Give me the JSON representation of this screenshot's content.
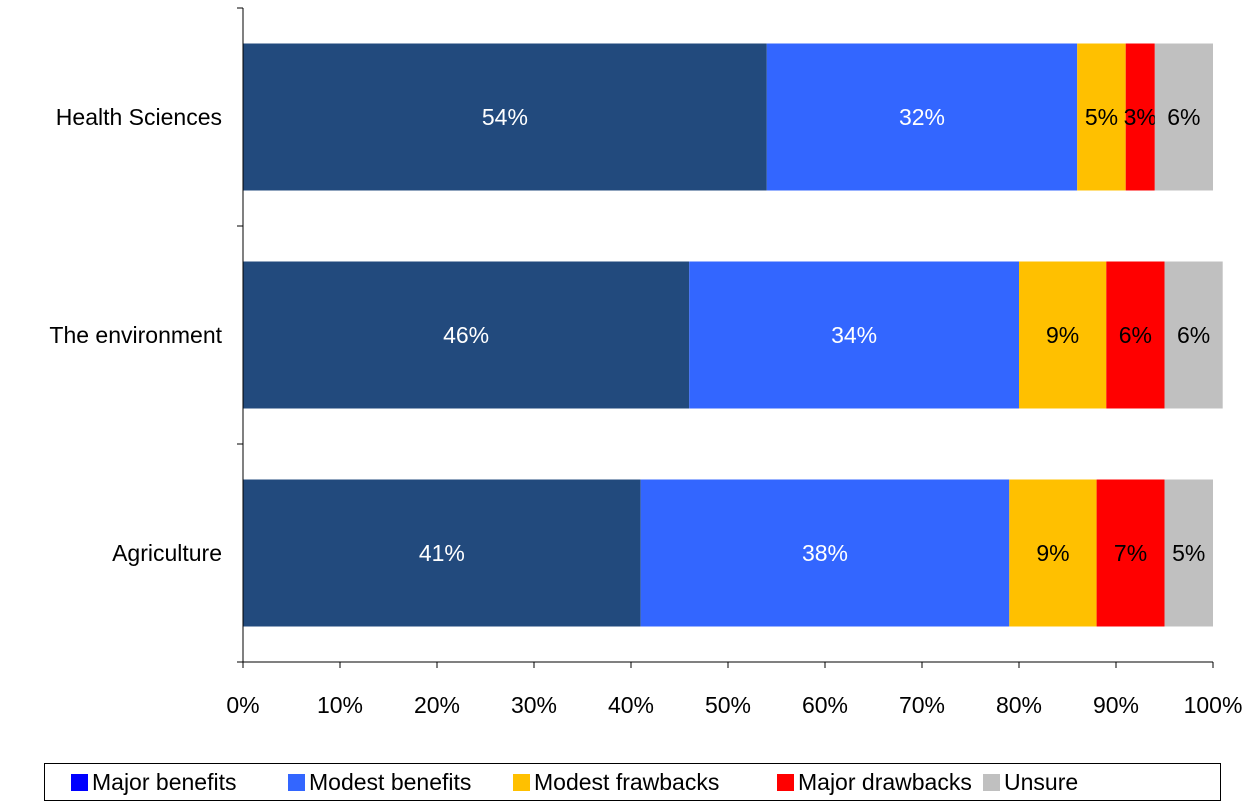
{
  "chart_data": {
    "type": "bar",
    "orientation": "horizontal",
    "stacked": "percent",
    "categories": [
      "Health Sciences",
      "The environment",
      "Agriculture"
    ],
    "series": [
      {
        "name": "Major benefits",
        "color": "#224a7d",
        "swatch_color": "#0000ff",
        "label_color": "#ffffff",
        "values": [
          54,
          46,
          41
        ],
        "labels": [
          "54%",
          "46%",
          "41%"
        ]
      },
      {
        "name": "Modest benefits",
        "color": "#3366ff",
        "swatch_color": "#3366ff",
        "label_color": "#ffffff",
        "values": [
          32,
          34,
          38
        ],
        "labels": [
          "32%",
          "34%",
          "38%"
        ]
      },
      {
        "name": "Modest frawbacks",
        "color": "#ffc000",
        "swatch_color": "#ffc000",
        "label_color": "#000000",
        "values": [
          5,
          9,
          9
        ],
        "labels": [
          "5%",
          "9%",
          "9%"
        ]
      },
      {
        "name": "Major drawbacks",
        "color": "#ff0000",
        "swatch_color": "#ff0000",
        "label_color": "#000000",
        "values": [
          3,
          6,
          7
        ],
        "labels": [
          "3%",
          "6%",
          "7%"
        ]
      },
      {
        "name": "Unsure",
        "color": "#c0c0c0",
        "swatch_color": "#c0c0c0",
        "label_color": "#000000",
        "values": [
          6,
          6,
          5
        ],
        "labels": [
          "6%",
          "6%",
          "5%"
        ]
      }
    ],
    "xlim": [
      0,
      100
    ],
    "x_ticks": [
      "0%",
      "10%",
      "20%",
      "30%",
      "40%",
      "50%",
      "60%",
      "70%",
      "80%",
      "90%",
      "100%"
    ],
    "grid": false,
    "legend_position": "bottom"
  }
}
